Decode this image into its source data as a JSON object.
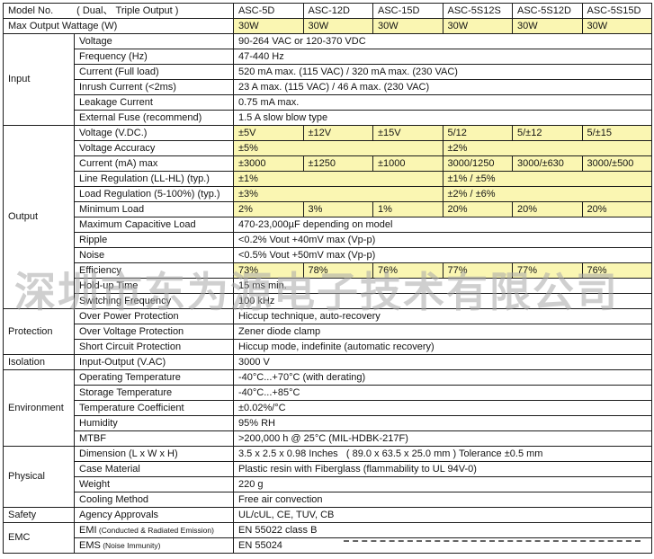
{
  "colors": {
    "highlight": "#faf6b2",
    "border": "#1c1c1c",
    "watermark_gray": "#a9a9a9"
  },
  "watermark": {
    "text": "深圳市东为源电子技术有限公司"
  },
  "table": {
    "header_row": {
      "model_label": "Model No.",
      "model_note": "( Dual、 Triple Output )",
      "models": [
        "ASC-5D",
        "ASC-12D",
        "ASC-15D",
        "ASC-5S12S",
        "ASC-5S12D",
        "ASC-5S15D"
      ]
    },
    "wattage_row": {
      "label": "Max Output Wattage (W)",
      "values": [
        "30W",
        "30W",
        "30W",
        "30W",
        "30W",
        "30W"
      ]
    },
    "sections": [
      {
        "name": "Input",
        "rows": [
          {
            "param": "Voltage",
            "cells": [
              {
                "text": "90-264 VAC or 120-370 VDC",
                "span": 6,
                "hl": false
              }
            ]
          },
          {
            "param": "Frequency (Hz)",
            "cells": [
              {
                "text": "47-440 Hz",
                "span": 6,
                "hl": false
              }
            ]
          },
          {
            "param": "Current (Full load)",
            "cells": [
              {
                "text": "520 mA max. (115 VAC) / 320 mA max. (230 VAC)",
                "span": 6,
                "hl": false
              }
            ]
          },
          {
            "param": "Inrush Current (<2ms)",
            "cells": [
              {
                "text": "23 A max. (115 VAC) / 46 A max. (230 VAC)",
                "span": 6,
                "hl": false
              }
            ]
          },
          {
            "param": "Leakage Current",
            "cells": [
              {
                "text": "0.75 mA max.",
                "span": 6,
                "hl": false
              }
            ]
          },
          {
            "param": "External Fuse (recommend)",
            "cells": [
              {
                "text": "1.5 A slow blow type",
                "span": 6,
                "hl": false
              }
            ]
          }
        ]
      },
      {
        "name": "Output",
        "rows": [
          {
            "param": "Voltage (V.DC.)",
            "cells": [
              {
                "text": "±5V",
                "span": 1,
                "hl": true
              },
              {
                "text": "±12V",
                "span": 1,
                "hl": true
              },
              {
                "text": "±15V",
                "span": 1,
                "hl": true
              },
              {
                "text": "5/12",
                "span": 1,
                "hl": true
              },
              {
                "text": "5/±12",
                "span": 1,
                "hl": true
              },
              {
                "text": "5/±15",
                "span": 1,
                "hl": true
              }
            ]
          },
          {
            "param": "Voltage Accuracy",
            "cells": [
              {
                "text": "±5%",
                "span": 3,
                "hl": true
              },
              {
                "text": "±2%",
                "span": 3,
                "hl": true
              }
            ]
          },
          {
            "param": "Current (mA) max",
            "cells": [
              {
                "text": "±3000",
                "span": 1,
                "hl": true
              },
              {
                "text": "±1250",
                "span": 1,
                "hl": true
              },
              {
                "text": "±1000",
                "span": 1,
                "hl": true
              },
              {
                "text": "3000/1250",
                "span": 1,
                "hl": true
              },
              {
                "text": "3000/±630",
                "span": 1,
                "hl": true
              },
              {
                "text": "3000/±500",
                "span": 1,
                "hl": true
              }
            ]
          },
          {
            "param": "Line Regulation (LL-HL) (typ.)",
            "cells": [
              {
                "text": "±1%",
                "span": 3,
                "hl": true
              },
              {
                "text": "±1% / ±5%",
                "span": 3,
                "hl": true
              }
            ]
          },
          {
            "param": "Load Regulation (5-100%) (typ.)",
            "cells": [
              {
                "text": "±3%",
                "span": 3,
                "hl": true
              },
              {
                "text": "±2% / ±6%",
                "span": 3,
                "hl": true
              }
            ]
          },
          {
            "param": "Minimum Load",
            "cells": [
              {
                "text": "2%",
                "span": 1,
                "hl": true
              },
              {
                "text": "3%",
                "span": 1,
                "hl": true
              },
              {
                "text": "1%",
                "span": 1,
                "hl": true
              },
              {
                "text": "20%",
                "span": 1,
                "hl": true
              },
              {
                "text": "20%",
                "span": 1,
                "hl": true
              },
              {
                "text": "20%",
                "span": 1,
                "hl": true
              }
            ]
          },
          {
            "param": "Maximum Capacitive Load",
            "cells": [
              {
                "text": "470-23,000µF depending on model",
                "span": 6,
                "hl": false
              }
            ]
          },
          {
            "param": "Ripple",
            "cells": [
              {
                "text": "<0.2% Vout +40mV max (Vp-p)",
                "span": 6,
                "hl": false
              }
            ]
          },
          {
            "param": "Noise",
            "cells": [
              {
                "text": "<0.5% Vout +50mV max (Vp-p)",
                "span": 6,
                "hl": false
              }
            ]
          },
          {
            "param": "Efficiency",
            "cells": [
              {
                "text": "73%",
                "span": 1,
                "hl": true
              },
              {
                "text": "78%",
                "span": 1,
                "hl": true
              },
              {
                "text": "76%",
                "span": 1,
                "hl": true
              },
              {
                "text": "77%",
                "span": 1,
                "hl": true
              },
              {
                "text": "77%",
                "span": 1,
                "hl": true
              },
              {
                "text": "76%",
                "span": 1,
                "hl": true
              }
            ]
          },
          {
            "param": "Hold-up Time",
            "cells": [
              {
                "text": "15 ms min.",
                "span": 6,
                "hl": false
              }
            ]
          },
          {
            "param": "Switching Frequency",
            "cells": [
              {
                "text": "100 kHz",
                "span": 6,
                "hl": false
              }
            ]
          }
        ]
      },
      {
        "name": "Protection",
        "rows": [
          {
            "param": "Over Power Protection",
            "cells": [
              {
                "text": "Hiccup technique, auto-recovery",
                "span": 6,
                "hl": false
              }
            ]
          },
          {
            "param": "Over Voltage Protection",
            "cells": [
              {
                "text": "Zener diode clamp",
                "span": 6,
                "hl": false
              }
            ]
          },
          {
            "param": "Short Circuit Protection",
            "cells": [
              {
                "text": "Hiccup mode, indefinite (automatic recovery)",
                "span": 6,
                "hl": false
              }
            ]
          }
        ]
      },
      {
        "name": "Isolation",
        "rows": [
          {
            "param": "Input-Output (V.AC)",
            "cells": [
              {
                "text": "3000 V",
                "span": 6,
                "hl": false
              }
            ]
          }
        ]
      },
      {
        "name": "Environment",
        "rows": [
          {
            "param": "Operating Temperature",
            "cells": [
              {
                "text": "-40°C...+70°C (with derating)",
                "span": 6,
                "hl": false
              }
            ]
          },
          {
            "param": "Storage Temperature",
            "cells": [
              {
                "text": "-40°C...+85°C",
                "span": 6,
                "hl": false
              }
            ]
          },
          {
            "param": "Temperature Coefficient",
            "cells": [
              {
                "text": "±0.02%/°C",
                "span": 6,
                "hl": false
              }
            ]
          },
          {
            "param": "Humidity",
            "cells": [
              {
                "text": "95% RH",
                "span": 6,
                "hl": false
              }
            ]
          },
          {
            "param": "MTBF",
            "cells": [
              {
                "text": ">200,000 h @ 25°C (MIL-HDBK-217F)",
                "span": 6,
                "hl": false
              }
            ]
          }
        ]
      },
      {
        "name": "Physical",
        "rows": [
          {
            "param": "Dimension (L x W x H)",
            "cells": [
              {
                "text": "3.5 x 2.5 x 0.98 Inches   ( 89.0 x 63.5 x 25.0 mm ) Tolerance ±0.5 mm",
                "span": 6,
                "hl": false
              }
            ]
          },
          {
            "param": "Case Material",
            "cells": [
              {
                "text": "Plastic resin with Fiberglass (flammability to UL 94V-0)",
                "span": 6,
                "hl": false
              }
            ]
          },
          {
            "param": "Weight",
            "cells": [
              {
                "text": "220 g",
                "span": 6,
                "hl": false
              }
            ]
          },
          {
            "param": "Cooling Method",
            "cells": [
              {
                "text": "Free air convection",
                "span": 6,
                "hl": false
              }
            ]
          }
        ]
      },
      {
        "name": "Safety",
        "rows": [
          {
            "param": "Agency Approvals",
            "cells": [
              {
                "text": "UL/cUL, CE, TUV, CB",
                "span": 6,
                "hl": false
              }
            ]
          }
        ]
      },
      {
        "name": "EMC",
        "rows": [
          {
            "param": "EMI",
            "param_note": "(Conducted & Radiated Emission)",
            "cells": [
              {
                "text": "EN 55022 class B",
                "span": 6,
                "hl": false
              }
            ]
          },
          {
            "param": "EMS",
            "param_note": "(Noise Immunity)",
            "cells": [
              {
                "text": "EN 55024",
                "span": 6,
                "hl": false
              }
            ]
          }
        ]
      }
    ]
  }
}
